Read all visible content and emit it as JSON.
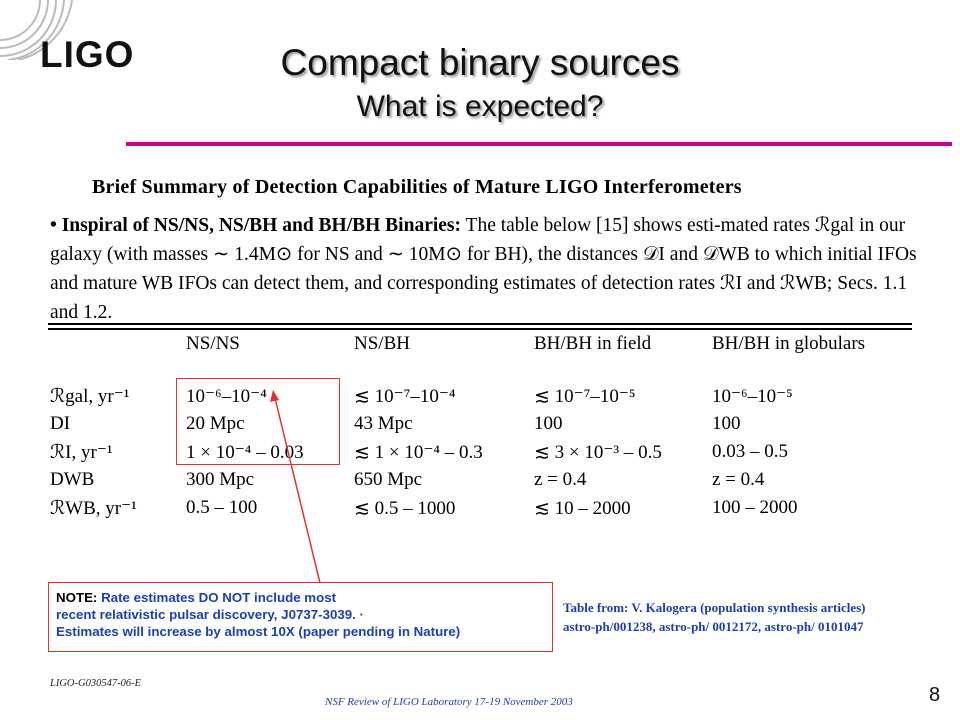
{
  "header": {
    "logo_text": "LIGO",
    "title": "Compact binary sources",
    "subtitle": "What is expected?"
  },
  "summary": {
    "heading": "Brief Summary of Detection Capabilities of Mature LIGO Interferometers",
    "bullet_lead": "• Inspiral of NS/NS, NS/BH and BH/BH Binaries:",
    "bullet_body": "The table below [15] shows esti-mated rates ℛgal in our galaxy (with masses ∼ 1.4M⊙ for NS and ∼ 10M⊙ for BH), the distances 𝒟I and 𝒟WB to which initial IFOs and mature WB IFOs can detect them, and corresponding estimates of detection rates ℛI and ℛWB; Secs. 1.1 and 1.2."
  },
  "table": {
    "columns": [
      "NS/NS",
      "NS/BH",
      "BH/BH in field",
      "BH/BH in globulars"
    ],
    "rows": [
      {
        "label": "ℛgal, yr⁻¹",
        "cells": [
          "10⁻⁶–10⁻⁴",
          "≲ 10⁻⁷–10⁻⁴",
          "≲ 10⁻⁷–10⁻⁵",
          "10⁻⁶–10⁻⁵"
        ]
      },
      {
        "label": "DI",
        "cells": [
          "20 Mpc",
          "43 Mpc",
          "100",
          "100"
        ]
      },
      {
        "label": "ℛI, yr⁻¹",
        "cells": [
          "1 × 10⁻⁴ – 0.03",
          "≲ 1 × 10⁻⁴ – 0.3",
          "≲ 3 × 10⁻³ – 0.5",
          "0.03 – 0.5"
        ]
      },
      {
        "label": "DWB",
        "cells": [
          "300 Mpc",
          "650 Mpc",
          "z = 0.4",
          "z = 0.4"
        ]
      },
      {
        "label": "ℛWB, yr⁻¹",
        "cells": [
          "0.5 – 100",
          "≲ 0.5 – 1000",
          "≲ 10 – 2000",
          "100 – 2000"
        ]
      }
    ]
  },
  "note": {
    "label": "NOTE:",
    "line1": "Rate estimates DO NOT include most",
    "line2": "recent relativistic  pulsar discovery, J0737-3039.  ·",
    "line3": "Estimates will increase by almost 10X (paper pending in Nature)"
  },
  "source": {
    "line1": "Table from: V. Kalogera (population synthesis articles)",
    "line2": "astro-ph/001238, astro-ph/ 0012172, astro-ph/ 0101047"
  },
  "footer": {
    "doc_id": "LIGO-G030547-06-E",
    "review": "NSF Review of LIGO Laboratory 17-19 November 2003",
    "page": "8"
  },
  "colors": {
    "accent_rule": "#cc0099",
    "highlight": "#e0322b",
    "note_text": "#1b3fb0"
  }
}
